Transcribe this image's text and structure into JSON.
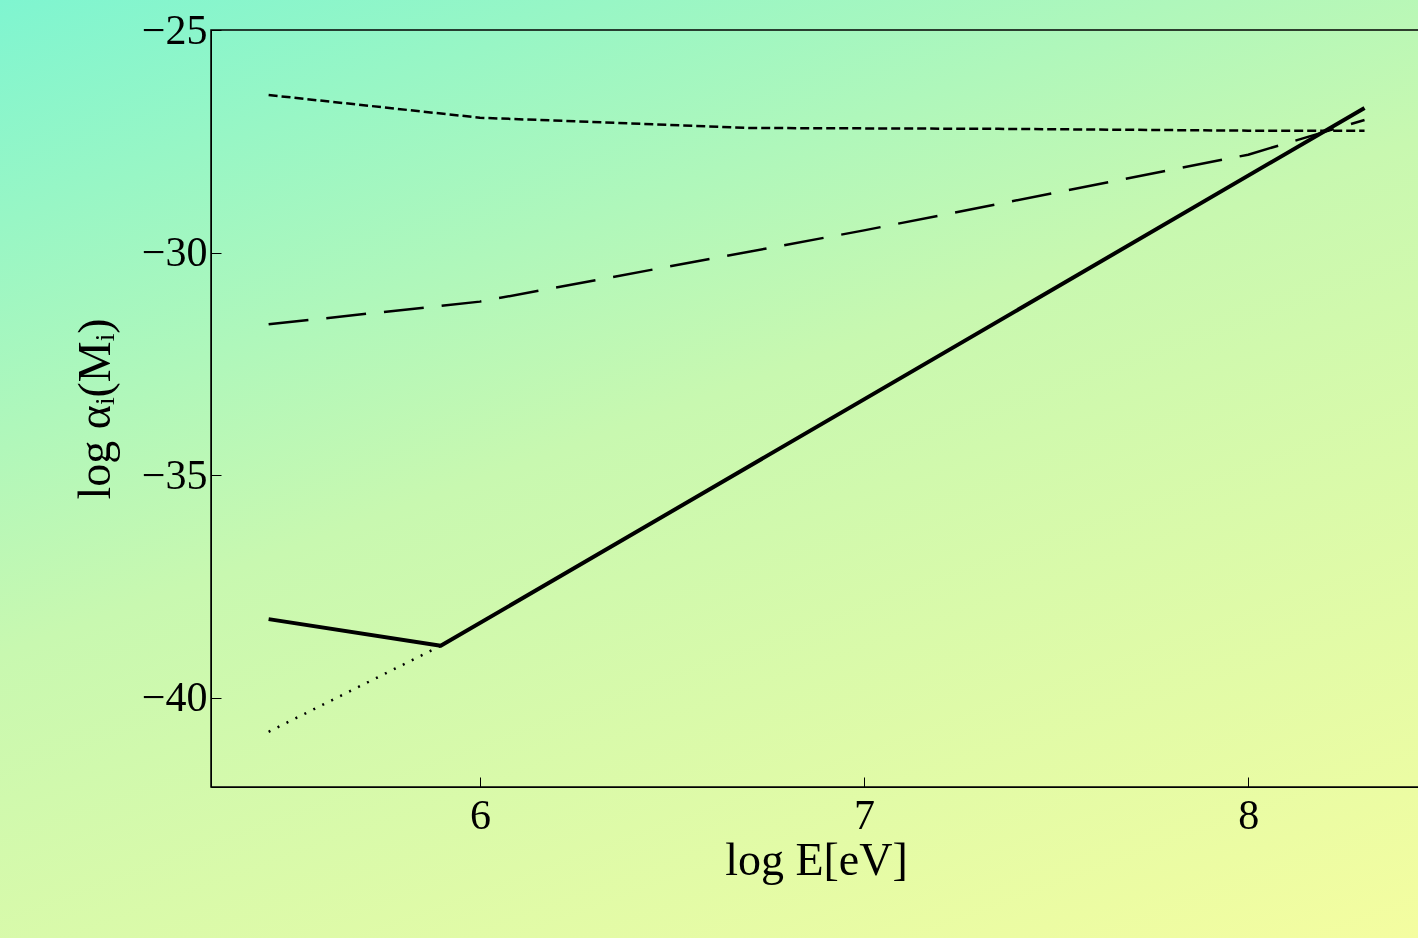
{
  "chart_data": {
    "type": "line",
    "xlabel": "log E[eV]",
    "ylabel": "log αᵢ(Mᵢ)",
    "xlim": [
      5.3,
      8.45
    ],
    "ylim": [
      -42,
      -25
    ],
    "xticks": [
      6,
      7,
      8
    ],
    "yticks": [
      -25,
      -30,
      -35,
      -40
    ],
    "grid": false,
    "marker": "none",
    "series": [
      {
        "color": "#000000",
        "line_style": "solid",
        "x": [
          5.45,
          5.898,
          8.303
        ],
        "values": [
          -38.23,
          -38.83,
          -26.75
        ]
      },
      {
        "color": "#000000",
        "line_style": "dotted",
        "x": [
          5.45,
          5.898
        ],
        "values": [
          -40.76,
          -38.83
        ]
      },
      {
        "color": "#000000",
        "line_style": "longdash",
        "x": [
          5.45,
          6,
          7,
          8,
          8.303
        ],
        "values": [
          -31.61,
          -31.1,
          -29.5,
          -27.8,
          -27.02
        ]
      },
      {
        "color": "#000000",
        "line_style": "dashed",
        "x": [
          5.45,
          6,
          6.7,
          7.35,
          8,
          8.303
        ],
        "values": [
          -26.46,
          -26.97,
          -27.2,
          -27.22,
          -27.26,
          -27.26
        ]
      }
    ]
  }
}
